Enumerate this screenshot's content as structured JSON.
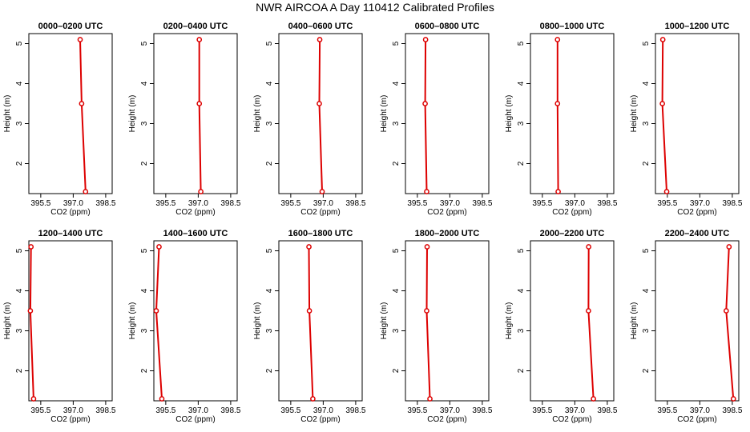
{
  "figure_title": "NWR AIRCOA A  Day 110412  Calibrated Profiles",
  "colors": {
    "series": "#dd0000",
    "axes": "#000000",
    "background": "#ffffff"
  },
  "chart_data": [
    {
      "type": "line",
      "title": "0000–0200 UTC",
      "xlabel": "CO2 (ppm)",
      "ylabel": "Height (m)",
      "xticks": [
        "395.5",
        "397.0",
        "398.5"
      ],
      "yticks": [
        "2",
        "3",
        "4",
        "5"
      ],
      "xlim": [
        394.95,
        398.8
      ],
      "ylim": [
        1.25,
        5.25
      ],
      "series": [
        {
          "x": [
            397.32,
            397.39,
            397.57
          ],
          "y": [
            5.1,
            3.5,
            1.3
          ]
        }
      ]
    },
    {
      "type": "line",
      "title": "0200–0400 UTC",
      "xlabel": "CO2 (ppm)",
      "ylabel": "Height (m)",
      "xticks": [
        "395.5",
        "397.0",
        "398.5"
      ],
      "yticks": [
        "2",
        "3",
        "4",
        "5"
      ],
      "xlim": [
        394.95,
        398.8
      ],
      "ylim": [
        1.25,
        5.25
      ],
      "series": [
        {
          "x": [
            397.05,
            397.05,
            397.12
          ],
          "y": [
            5.1,
            3.5,
            1.3
          ]
        }
      ]
    },
    {
      "type": "line",
      "title": "0400–0600 UTC",
      "xlabel": "CO2 (ppm)",
      "ylabel": "Height (m)",
      "xticks": [
        "395.5",
        "397.0",
        "398.5"
      ],
      "yticks": [
        "2",
        "3",
        "4",
        "5"
      ],
      "xlim": [
        394.95,
        398.8
      ],
      "ylim": [
        1.25,
        5.25
      ],
      "series": [
        {
          "x": [
            396.84,
            396.82,
            396.95
          ],
          "y": [
            5.1,
            3.5,
            1.3
          ]
        }
      ]
    },
    {
      "type": "line",
      "title": "0600–0800 UTC",
      "xlabel": "CO2 (ppm)",
      "ylabel": "Height (m)",
      "xticks": [
        "395.5",
        "397.0",
        "398.5"
      ],
      "yticks": [
        "2",
        "3",
        "4",
        "5"
      ],
      "xlim": [
        394.95,
        398.8
      ],
      "ylim": [
        1.25,
        5.25
      ],
      "series": [
        {
          "x": [
            395.88,
            395.86,
            395.93
          ],
          "y": [
            5.1,
            3.5,
            1.3
          ]
        }
      ]
    },
    {
      "type": "line",
      "title": "0800–1000 UTC",
      "xlabel": "CO2 (ppm)",
      "ylabel": "Height (m)",
      "xticks": [
        "395.5",
        "397.0",
        "398.5"
      ],
      "yticks": [
        "2",
        "3",
        "4",
        "5"
      ],
      "xlim": [
        394.95,
        398.8
      ],
      "ylim": [
        1.25,
        5.25
      ],
      "series": [
        {
          "x": [
            396.2,
            396.2,
            396.23
          ],
          "y": [
            5.1,
            3.5,
            1.3
          ]
        }
      ]
    },
    {
      "type": "line",
      "title": "1000–1200 UTC",
      "xlabel": "CO2 (ppm)",
      "ylabel": "Height (m)",
      "xticks": [
        "395.5",
        "397.0",
        "398.5"
      ],
      "yticks": [
        "2",
        "3",
        "4",
        "5"
      ],
      "xlim": [
        394.95,
        398.8
      ],
      "ylim": [
        1.25,
        5.25
      ],
      "series": [
        {
          "x": [
            395.29,
            395.27,
            395.47
          ],
          "y": [
            5.1,
            3.5,
            1.3
          ]
        }
      ]
    },
    {
      "type": "line",
      "title": "1200–1400 UTC",
      "xlabel": "CO2 (ppm)",
      "ylabel": "Height (m)",
      "xticks": [
        "395.5",
        "397.0",
        "398.5"
      ],
      "yticks": [
        "2",
        "3",
        "4",
        "5"
      ],
      "xlim": [
        394.95,
        398.8
      ],
      "ylim": [
        1.25,
        5.25
      ],
      "series": [
        {
          "x": [
            395.05,
            395.02,
            395.17
          ],
          "y": [
            5.1,
            3.5,
            1.3
          ]
        }
      ]
    },
    {
      "type": "line",
      "title": "1400–1600 UTC",
      "xlabel": "CO2 (ppm)",
      "ylabel": "Height (m)",
      "xticks": [
        "395.5",
        "397.0",
        "398.5"
      ],
      "yticks": [
        "2",
        "3",
        "4",
        "5"
      ],
      "xlim": [
        394.95,
        398.8
      ],
      "ylim": [
        1.25,
        5.25
      ],
      "series": [
        {
          "x": [
            395.19,
            395.06,
            395.32
          ],
          "y": [
            5.1,
            3.5,
            1.3
          ]
        }
      ]
    },
    {
      "type": "line",
      "title": "1600–1800 UTC",
      "xlabel": "CO2 (ppm)",
      "ylabel": "Height (m)",
      "xticks": [
        "395.5",
        "397.0",
        "398.5"
      ],
      "yticks": [
        "2",
        "3",
        "4",
        "5"
      ],
      "xlim": [
        394.95,
        398.8
      ],
      "ylim": [
        1.25,
        5.25
      ],
      "series": [
        {
          "x": [
            396.34,
            396.36,
            396.52
          ],
          "y": [
            5.1,
            3.5,
            1.3
          ]
        }
      ]
    },
    {
      "type": "line",
      "title": "1800–2000 UTC",
      "xlabel": "CO2 (ppm)",
      "ylabel": "Height (m)",
      "xticks": [
        "395.5",
        "397.0",
        "398.5"
      ],
      "yticks": [
        "2",
        "3",
        "4",
        "5"
      ],
      "xlim": [
        394.95,
        398.8
      ],
      "ylim": [
        1.25,
        5.25
      ],
      "series": [
        {
          "x": [
            395.95,
            395.93,
            396.08
          ],
          "y": [
            5.1,
            3.5,
            1.3
          ]
        }
      ]
    },
    {
      "type": "line",
      "title": "2000–2200 UTC",
      "xlabel": "CO2 (ppm)",
      "ylabel": "Height (m)",
      "xticks": [
        "395.5",
        "397.0",
        "398.5"
      ],
      "yticks": [
        "2",
        "3",
        "4",
        "5"
      ],
      "xlim": [
        394.95,
        398.8
      ],
      "ylim": [
        1.25,
        5.25
      ],
      "series": [
        {
          "x": [
            397.64,
            397.63,
            397.86
          ],
          "y": [
            5.1,
            3.5,
            1.3
          ]
        }
      ]
    },
    {
      "type": "line",
      "title": "2200–2400 UTC",
      "xlabel": "CO2 (ppm)",
      "ylabel": "Height (m)",
      "xticks": [
        "395.5",
        "397.0",
        "398.5"
      ],
      "yticks": [
        "2",
        "3",
        "4",
        "5"
      ],
      "xlim": [
        394.95,
        398.8
      ],
      "ylim": [
        1.25,
        5.25
      ],
      "series": [
        {
          "x": [
            398.35,
            398.22,
            398.55
          ],
          "y": [
            5.1,
            3.5,
            1.3
          ]
        }
      ]
    }
  ]
}
